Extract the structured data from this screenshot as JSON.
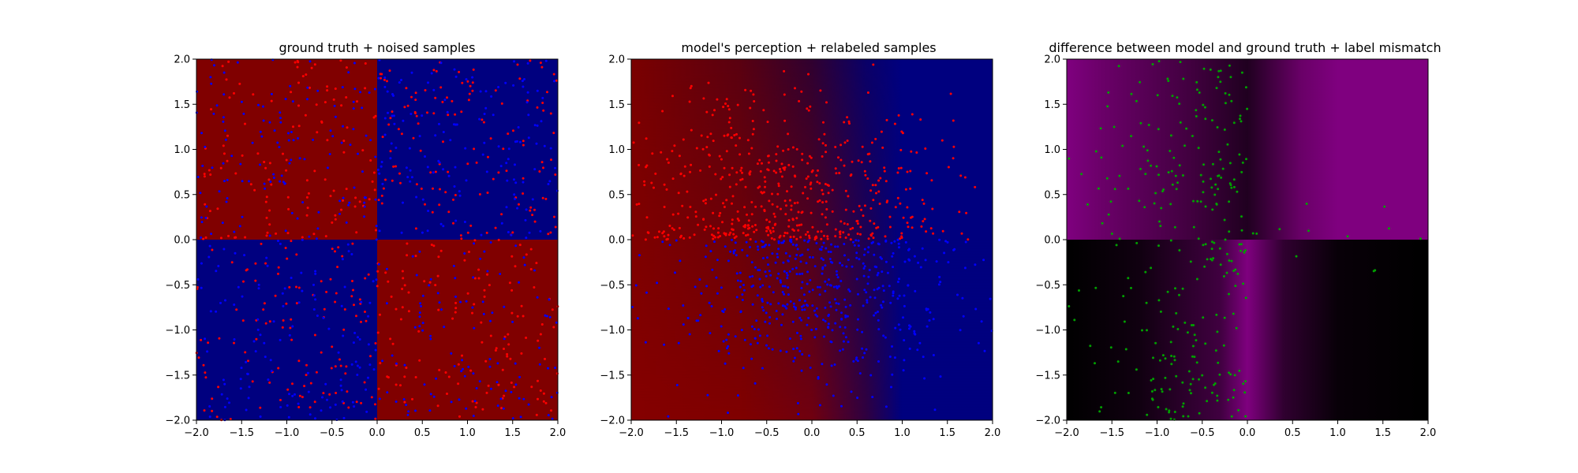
{
  "figure": {
    "background": "#ffffff"
  },
  "chart_data": [
    {
      "type": "scatter",
      "title": "ground truth + noised samples",
      "xlabel": "",
      "ylabel": "",
      "xlim": [
        -2.0,
        2.0
      ],
      "ylim": [
        -2.0,
        2.0
      ],
      "xticks": [
        "−2.0",
        "−1.5",
        "−1.0",
        "−0.5",
        "0.0",
        "0.5",
        "1.0",
        "1.5",
        "2.0"
      ],
      "yticks": [
        "−2.0",
        "−1.5",
        "−1.0",
        "−0.5",
        "0.0",
        "0.5",
        "1.0",
        "1.5",
        "2.0"
      ],
      "grid": false,
      "background": {
        "kind": "quadrants",
        "top_left": "#800000",
        "top_right": "#00007f",
        "bottom_left": "#00007f",
        "bottom_right": "#800000"
      },
      "series": [
        {
          "color": "#ff0000",
          "distribution": "uniform",
          "region": [
            -2,
            2,
            -2,
            2
          ],
          "approx_count": 520,
          "seed": 11
        },
        {
          "color": "#0000ff",
          "distribution": "uniform",
          "region": [
            -2,
            2,
            -2,
            2
          ],
          "approx_count": 520,
          "seed": 23
        }
      ]
    },
    {
      "type": "scatter",
      "title": "model's perception + relabeled samples",
      "xlabel": "",
      "ylabel": "",
      "xlim": [
        -2.0,
        2.0
      ],
      "ylim": [
        -2.0,
        2.0
      ],
      "xticks": [
        "−2.0",
        "−1.5",
        "−1.0",
        "−0.5",
        "0.0",
        "0.5",
        "1.0",
        "1.5",
        "2.0"
      ],
      "yticks": [
        "−2.0",
        "−1.5",
        "−1.0",
        "−0.5",
        "0.0",
        "0.5",
        "1.0",
        "1.5",
        "2.0"
      ],
      "grid": false,
      "background": {
        "kind": "horizontal-gradient",
        "stops": [
          {
            "x": -2.0,
            "top": "#7a0000",
            "bottom": "#850000"
          },
          {
            "x": -0.8,
            "top": "#5a0010",
            "bottom": "#800000"
          },
          {
            "x": 0.0,
            "top": "#300030",
            "bottom": "#700010"
          },
          {
            "x": 0.6,
            "top": "#0a0068",
            "bottom": "#300040"
          },
          {
            "x": 1.0,
            "top": "#00007f",
            "bottom": "#00007f"
          },
          {
            "x": 2.0,
            "top": "#00007f",
            "bottom": "#00007f"
          }
        ]
      },
      "series": [
        {
          "color": "#ff0000",
          "distribution": "clustered",
          "region": [
            -2,
            2,
            0,
            2
          ],
          "approx_count": 520,
          "seed": 37
        },
        {
          "color": "#0000ff",
          "distribution": "clustered",
          "region": [
            -2,
            2,
            -2,
            0
          ],
          "approx_count": 520,
          "seed": 53
        }
      ]
    },
    {
      "type": "scatter",
      "title": "difference between model and ground truth + label mismatch",
      "xlabel": "",
      "ylabel": "",
      "xlim": [
        -2.0,
        2.0
      ],
      "ylim": [
        -2.0,
        2.0
      ],
      "xticks": [
        "−2.0",
        "−1.5",
        "−1.0",
        "−0.5",
        "0.0",
        "0.5",
        "1.0",
        "1.5",
        "2.0"
      ],
      "yticks": [
        "−2.0",
        "−1.5",
        "−1.0",
        "−0.5",
        "0.0",
        "0.5",
        "1.0",
        "1.5",
        "2.0"
      ],
      "grid": false,
      "background": {
        "kind": "difference-map",
        "top": [
          {
            "x": -2.0,
            "color": "#7f007f"
          },
          {
            "x": -1.6,
            "color": "#6a0068"
          },
          {
            "x": -0.6,
            "color": "#40003e"
          },
          {
            "x": 0.0,
            "color": "#200020"
          },
          {
            "x": 0.6,
            "color": "#6a0068"
          },
          {
            "x": 1.0,
            "color": "#7f007f"
          },
          {
            "x": 2.0,
            "color": "#7f007f"
          }
        ],
        "bottom": [
          {
            "x": -2.0,
            "color": "#000000"
          },
          {
            "x": -1.2,
            "color": "#100010"
          },
          {
            "x": -0.3,
            "color": "#400040"
          },
          {
            "x": 0.0,
            "color": "#7f007f"
          },
          {
            "x": 0.4,
            "color": "#300030"
          },
          {
            "x": 1.0,
            "color": "#080008"
          },
          {
            "x": 2.0,
            "color": "#000000"
          }
        ]
      },
      "series": [
        {
          "color": "#00a000",
          "distribution": "mismatch",
          "region": [
            -2,
            0,
            -2,
            2
          ],
          "approx_count": 300,
          "seed": 71
        },
        {
          "color": "#00a000",
          "distribution": "sparse",
          "region": [
            0,
            2,
            -0.5,
            0.4
          ],
          "approx_count": 12,
          "seed": 89
        }
      ]
    }
  ]
}
